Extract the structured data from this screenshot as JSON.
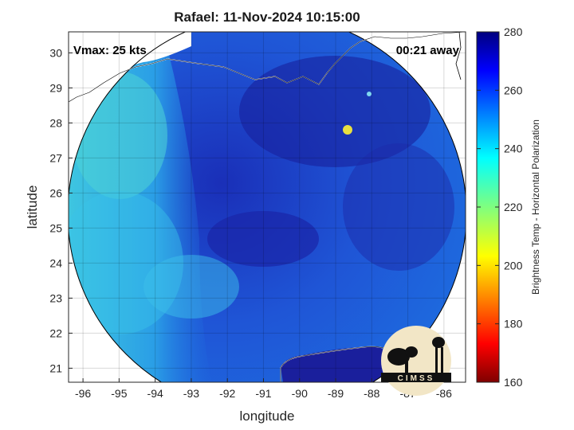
{
  "title": "Rafael: 11-Nov-2024 10:15:00",
  "overlays": {
    "intensity": "Vmax: 25 kts",
    "time_offset": "00:21 away"
  },
  "logo_text": "CIMSS",
  "map": {
    "type": "satellite-swath-map",
    "xlabel": "longitude",
    "ylabel": "latitude",
    "xlim": [
      -96.4,
      -85.4
    ],
    "ylim": [
      20.6,
      30.6
    ],
    "x_ticks": [
      -96,
      -95,
      -94,
      -93,
      -92,
      -91,
      -90,
      -89,
      -88,
      -87,
      -86
    ],
    "y_ticks": [
      21,
      22,
      23,
      24,
      25,
      26,
      27,
      28,
      29,
      30
    ],
    "grid": true,
    "swath_center": [
      -91.0,
      25.6
    ],
    "storm_center": [
      -91.2,
      24.7
    ],
    "colors": {
      "cold": "#1a22a8",
      "mid": "#1e6fe0",
      "warm": "#3ad0e6",
      "land_bg": "#ffffff"
    }
  },
  "colorbar": {
    "label": "Brightness Temp - Horizontal Polarization",
    "min": 160,
    "max": 280,
    "ticks": [
      160,
      180,
      200,
      220,
      240,
      260,
      280
    ],
    "colormap": "jet"
  }
}
